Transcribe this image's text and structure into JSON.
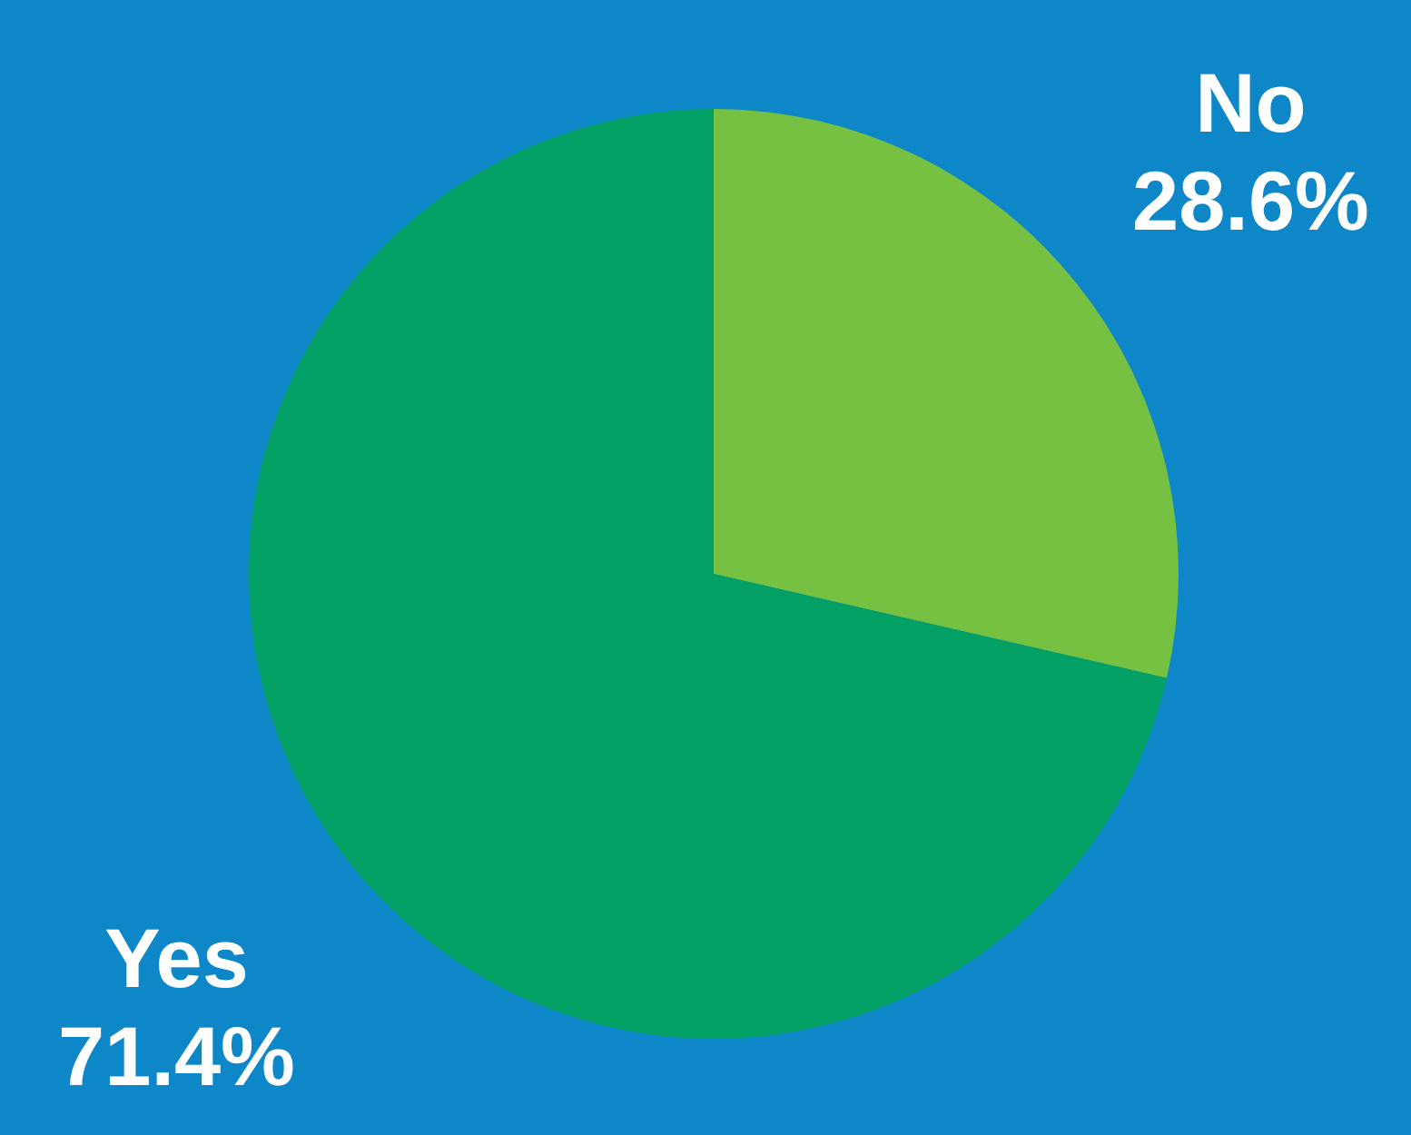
{
  "chart_data": {
    "type": "pie",
    "categories": [
      "No",
      "Yes"
    ],
    "values": [
      28.6,
      71.4
    ],
    "colors": [
      "#77c142",
      "#02a064"
    ],
    "value_labels": [
      "28.6%",
      "71.4%"
    ],
    "legend": false
  }
}
